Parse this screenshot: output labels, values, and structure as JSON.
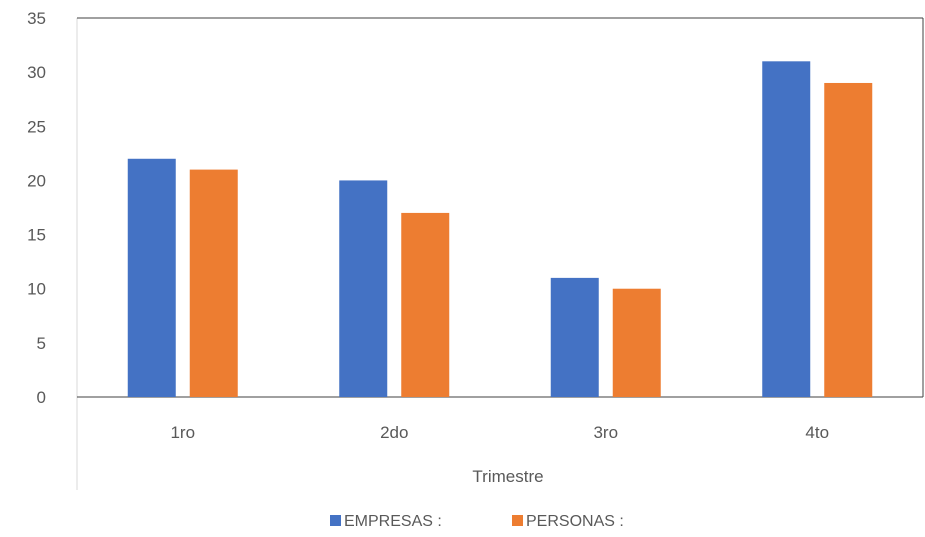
{
  "chart_data": {
    "type": "bar",
    "categories": [
      "1ro",
      "2do",
      "3ro",
      "4to"
    ],
    "series": [
      {
        "name": "EMPRESAS :",
        "values": [
          22,
          20,
          11,
          31
        ],
        "color": "#4472C4"
      },
      {
        "name": "PERSONAS :",
        "values": [
          21,
          17,
          10,
          29
        ],
        "color": "#ED7D31"
      }
    ],
    "title": "",
    "xlabel": "Trimestre",
    "ylabel": "",
    "ylim": [
      0,
      35
    ],
    "yticks": [
      0,
      5,
      10,
      15,
      20,
      25,
      30,
      35
    ],
    "grid": false,
    "legend_position": "bottom"
  }
}
